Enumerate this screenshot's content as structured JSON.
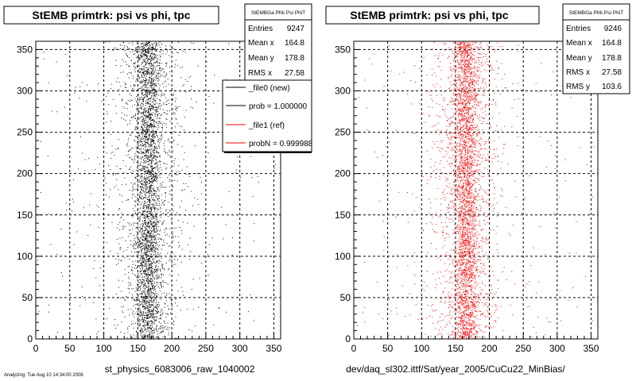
{
  "chart_data": [
    {
      "type": "scatter",
      "title": "StEMB primtrk: psi vs phi, tpc",
      "xlabel": "st_physics_6083006_raw_1040002",
      "ylabel": "",
      "xlim": [
        0,
        360
      ],
      "ylim": [
        0,
        360
      ],
      "xticks": [
        "0",
        "50",
        "100",
        "150",
        "200",
        "250",
        "300",
        "350"
      ],
      "yticks": [
        "0",
        "50",
        "100",
        "150",
        "200",
        "250",
        "300",
        "350"
      ],
      "grid": true,
      "marker_color": "#000000",
      "distribution": {
        "center_x": 165,
        "core_sigma_x": 9,
        "spread_sigma_x": 27
      },
      "stats": {
        "title": "StEMBGa Pfrk Psi PhiT",
        "rows": [
          {
            "label": "Entries",
            "value": "9247"
          },
          {
            "label": "Mean x",
            "value": "164.8"
          },
          {
            "label": "Mean y",
            "value": "178.8"
          },
          {
            "label": "RMS x",
            "value": "27.58"
          }
        ]
      },
      "legend": {
        "position": "top-right",
        "entries": [
          {
            "label": "_file0 (new)",
            "color": "#000000"
          },
          {
            "label": "prob = 1.000000",
            "color": "#000000"
          },
          {
            "label": "_file1 (ref)",
            "color": "#ff0000"
          },
          {
            "label": "probN = 0.999988",
            "color": "#ff0000"
          }
        ]
      }
    },
    {
      "type": "scatter",
      "title": "StEMB primtrk: psi vs phi, tpc",
      "xlabel": "dev/daq_sl302.ittf/Sat/year_2005/CuCu22_MinBias/",
      "ylabel": "",
      "xlim": [
        0,
        360
      ],
      "ylim": [
        0,
        360
      ],
      "xticks": [
        "0",
        "50",
        "100",
        "150",
        "200",
        "250",
        "300",
        "350"
      ],
      "yticks": [
        "0",
        "50",
        "100",
        "150",
        "200",
        "250",
        "300",
        "350"
      ],
      "grid": true,
      "marker_color": "#ff0000",
      "distribution": {
        "center_x": 165,
        "core_sigma_x": 9,
        "spread_sigma_x": 27
      },
      "stats": {
        "title": "StEMBGa Pfrk Psi PhiT",
        "rows": [
          {
            "label": "Entries",
            "value": "9246"
          },
          {
            "label": "Mean x",
            "value": "164.8"
          },
          {
            "label": "Mean y",
            "value": "178.8"
          },
          {
            "label": "RMS x",
            "value": "27.58"
          },
          {
            "label": "RMS y",
            "value": "103.6"
          }
        ]
      }
    }
  ],
  "footer_note": "Analyzing: Tue Aug 10 14:34:00 2006"
}
